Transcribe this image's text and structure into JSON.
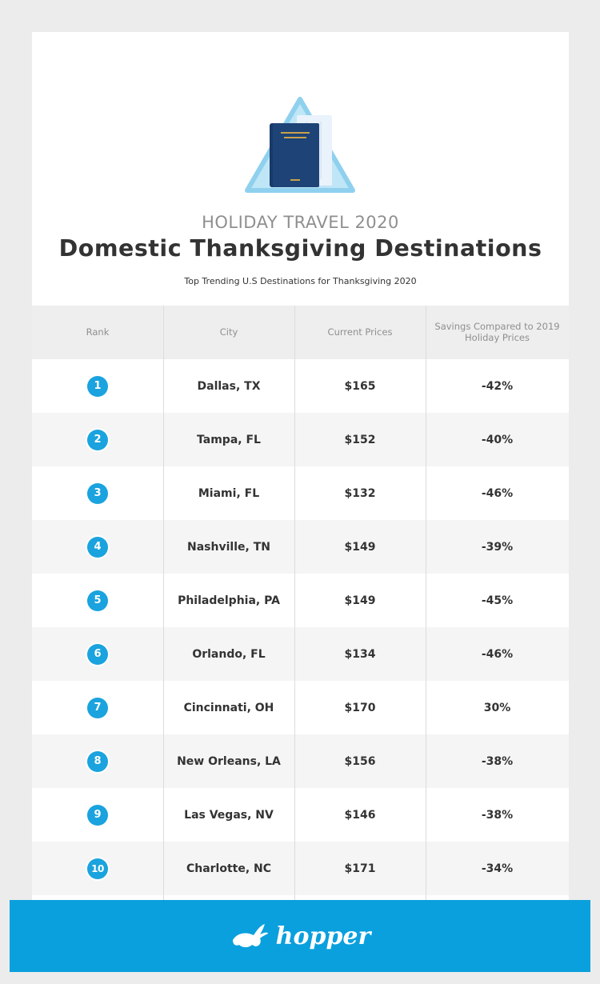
{
  "header": {
    "subtitle_top": "HOLIDAY TRAVEL 2020",
    "title": "Domestic Thanksgiving Destinations",
    "tagline": "Top Trending U.S Destinations for Thanksgiving 2020"
  },
  "table": {
    "columns": [
      "Rank",
      "City",
      "Current Prices",
      "Savings Compared to 2019 Holiday Prices"
    ]
  },
  "chart_data": {
    "type": "table",
    "title": "Domestic Thanksgiving Destinations",
    "columns": [
      "Rank",
      "City",
      "Current Prices",
      "Savings Compared to 2019 Holiday Prices"
    ],
    "rows": [
      {
        "rank": "1",
        "city": "Dallas, TX",
        "price": "$165",
        "savings": "-42%"
      },
      {
        "rank": "2",
        "city": "Tampa, FL",
        "price": "$152",
        "savings": "-40%"
      },
      {
        "rank": "3",
        "city": "Miami, FL",
        "price": "$132",
        "savings": "-46%"
      },
      {
        "rank": "4",
        "city": "Nashville, TN",
        "price": "$149",
        "savings": "-39%"
      },
      {
        "rank": "5",
        "city": "Philadelphia, PA",
        "price": "$149",
        "savings": "-45%"
      },
      {
        "rank": "6",
        "city": "Orlando, FL",
        "price": "$134",
        "savings": "-46%"
      },
      {
        "rank": "7",
        "city": "Cincinnati, OH",
        "price": "$170",
        "savings": "30%"
      },
      {
        "rank": "8",
        "city": "New Orleans, LA",
        "price": "$156",
        "savings": "-38%"
      },
      {
        "rank": "9",
        "city": "Las Vegas, NV",
        "price": "$146",
        "savings": "-38%"
      },
      {
        "rank": "10",
        "city": "Charlotte, NC",
        "price": "$171",
        "savings": "-34%"
      }
    ]
  },
  "footer": {
    "logo_text": "hopper",
    "logo_icon": "bunny-icon"
  },
  "colors": {
    "accent": "#0aa0de",
    "badge": "#1aa3de",
    "title": "#333333",
    "muted": "#8f8f8f"
  },
  "icons": {
    "hero": "passport-ticket-icon"
  }
}
